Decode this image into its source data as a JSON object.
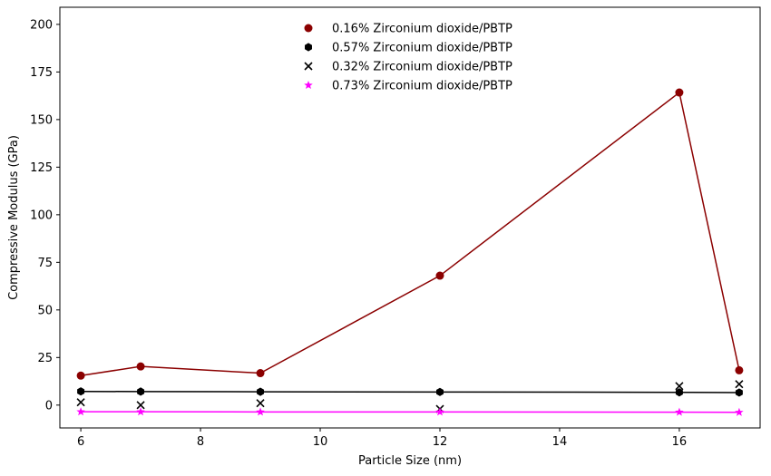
{
  "chart_data": {
    "type": "line",
    "title": "",
    "xlabel": "Particle Size (nm)",
    "ylabel": "Compressive Modulus (GPa)",
    "xlim": [
      5.65,
      17.35
    ],
    "ylim": [
      -12,
      209
    ],
    "xticks": [
      6,
      8,
      10,
      12,
      14,
      16
    ],
    "yticks": [
      0,
      25,
      50,
      75,
      100,
      125,
      150,
      175,
      200
    ],
    "grid": false,
    "legend_position": "top-center",
    "series": [
      {
        "name": "0.16% Zirconium dioxide/PBTP",
        "color": "#8b0000",
        "marker": "circle",
        "line": true,
        "x": [
          6,
          7,
          9,
          12,
          16,
          17
        ],
        "y": [
          15.5,
          20.3,
          16.8,
          68.0,
          164.2,
          18.3
        ]
      },
      {
        "name": "0.57% Zirconium dioxide/PBTP",
        "color": "#000000",
        "marker": "hexagon",
        "line": true,
        "x": [
          6,
          7,
          9,
          12,
          16,
          17
        ],
        "y": [
          7.2,
          7.1,
          7.0,
          6.9,
          6.7,
          6.6
        ]
      },
      {
        "name": "0.32% Zirconium dioxide/PBTP",
        "color": "#000000",
        "marker": "x",
        "line": false,
        "x": [
          6,
          7,
          9,
          12,
          16,
          17
        ],
        "y": [
          1.5,
          0.0,
          1.0,
          -2.0,
          10.0,
          11.0
        ]
      },
      {
        "name": "0.73% Zirconium dioxide/PBTP",
        "color": "#ff00ff",
        "marker": "star",
        "line": true,
        "x": [
          6,
          7,
          9,
          12,
          16,
          17
        ],
        "y": [
          -3.5,
          -3.5,
          -3.6,
          -3.6,
          -3.7,
          -3.8
        ]
      }
    ]
  }
}
